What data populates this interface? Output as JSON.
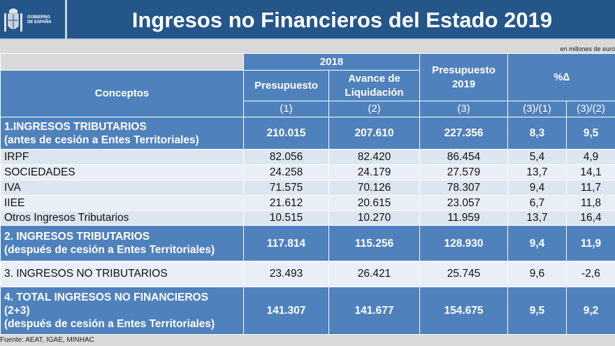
{
  "header": {
    "logo_text_line1": "GOBIERNO",
    "logo_text_line2": "DE ESPAÑA",
    "title": "Ingresos no Financieros del Estado 2019"
  },
  "units": "en millones de euro",
  "table": {
    "col_headers": {
      "conceptos": "Conceptos",
      "year_2018": "2018",
      "presupuesto": "Presupuesto",
      "avance": "Avance de Liquidación",
      "presupuesto_2019": "Presupuesto 2019",
      "pct_delta": "%∆",
      "c1": "(1)",
      "c2": "(2)",
      "c3": "(3)",
      "c4": "(3)/(1)",
      "c5": "(3)/(2)"
    },
    "rows": [
      {
        "label": "1.INGRESOS TRIBUTARIOS",
        "sub": "(antes de cesión a Entes Territoriales)",
        "v": [
          "210.015",
          "207.610",
          "227.356",
          "8,3",
          "9,5"
        ]
      },
      {
        "label": "IRPF",
        "v": [
          "82.056",
          "82.420",
          "86.454",
          "5,4",
          "4,9"
        ]
      },
      {
        "label": "SOCIEDADES",
        "v": [
          "24.258",
          "24.179",
          "27.579",
          "13,7",
          "14,1"
        ]
      },
      {
        "label": "IVA",
        "v": [
          "71.575",
          "70.126",
          "78.307",
          "9,4",
          "11,7"
        ]
      },
      {
        "label": "IIEE",
        "v": [
          "21.612",
          "20.615",
          "23.057",
          "6,7",
          "11,8"
        ]
      },
      {
        "label": "Otros Ingresos Tributarios",
        "v": [
          "10.515",
          "10.270",
          "11.959",
          "13,7",
          "16,4"
        ]
      },
      {
        "label": "2. INGRESOS TRIBUTARIOS",
        "sub": "(después de cesión a Entes Territoriales)",
        "v": [
          "117.814",
          "115.256",
          "128.930",
          "9,4",
          "11,9"
        ]
      },
      {
        "label": "3. INGRESOS NO TRIBUTARIOS",
        "v": [
          "23.493",
          "26.421",
          "25.745",
          "9,6",
          "-2,6"
        ]
      },
      {
        "label": "4. TOTAL INGRESOS NO FINANCIEROS",
        "sub": "(2+3)",
        "sub2": "(después de cesión a Entes Territoriales)",
        "v": [
          "141.307",
          "141.677",
          "154.675",
          "9,5",
          "9,2"
        ]
      }
    ]
  },
  "source": "Fuente: AEAT, IGAE, MINHAC"
}
